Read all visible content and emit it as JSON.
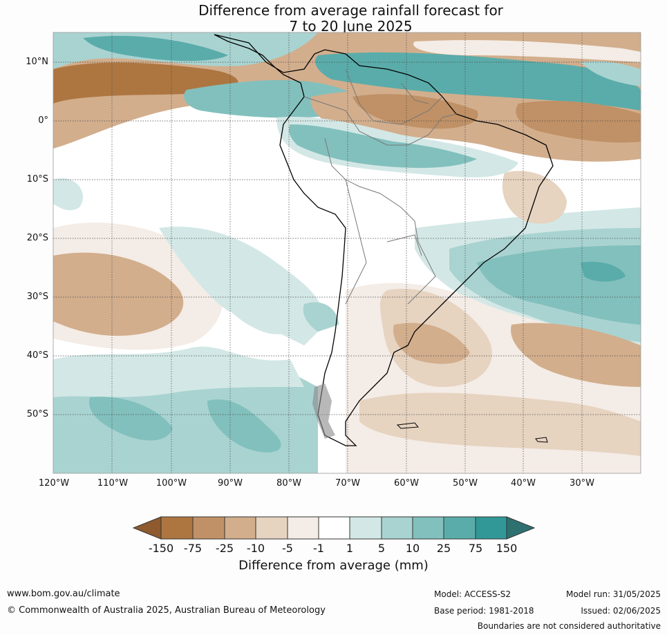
{
  "title_line1": "Difference from average rainfall forecast for",
  "title_line2": "7 to 20 June 2025",
  "lat_labels": [
    "10°N",
    "0°",
    "10°S",
    "20°S",
    "30°S",
    "40°S",
    "50°S"
  ],
  "lon_labels": [
    "120°W",
    "110°W",
    "100°W",
    "90°W",
    "80°W",
    "70°W",
    "60°W",
    "50°W",
    "40°W",
    "30°W"
  ],
  "colorbar": {
    "labels": [
      "-150",
      "-75",
      "-25",
      "-10",
      "-5",
      "-1",
      "1",
      "5",
      "10",
      "25",
      "75",
      "150"
    ],
    "colors": [
      "#8e5a2e",
      "#ad7641",
      "#c09166",
      "#d2ae8d",
      "#e6d3c0",
      "#f4ece6",
      "#ffffff",
      "#d3e8e6",
      "#a9d3d1",
      "#82c0bd",
      "#5aacaa",
      "#319897",
      "#2e7170"
    ],
    "title": "Difference from average (mm)"
  },
  "footer": {
    "website": "www.bom.gov.au/climate",
    "copyright": "© Commonwealth of Australia 2025, Australian Bureau of Meteorology",
    "model": "Model: ACCESS-S2",
    "base_period": "Base period: 1981-2018",
    "model_run": "Model run: 31/05/2025",
    "issued": "Issued: 02/06/2025",
    "disclaimer": "Boundaries are not considered authoritative"
  }
}
